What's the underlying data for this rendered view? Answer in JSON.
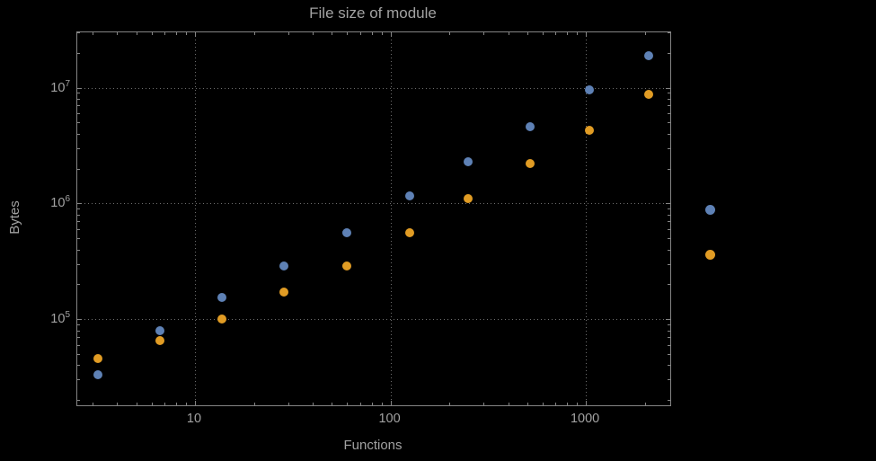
{
  "colors": {
    "background": "#000000",
    "text": "#a2a2a2",
    "frame": "#848484",
    "grid": "#6e6e6e",
    "series_blue": "#5E81B5",
    "series_orange": "#E19C24"
  },
  "chart_data": {
    "type": "scatter",
    "title": "File size of module",
    "xlabel": "Functions",
    "ylabel": "Bytes",
    "x_scale": "log",
    "y_scale": "log",
    "xlim": [
      2.5,
      2700
    ],
    "ylim": [
      18000,
      30000000
    ],
    "grid": "dotted",
    "x_major_ticks": [
      10,
      100,
      1000
    ],
    "x_tick_labels": [
      "10",
      "100",
      "1000"
    ],
    "y_major_ticks": [
      100000,
      1000000,
      10000000
    ],
    "y_tick_labels": [
      "10^5",
      "10^6",
      "10^7"
    ],
    "legend_position": "outside-right",
    "legend": {
      "entries": [
        {
          "label": "",
          "color": "#5E81B5"
        },
        {
          "label": "",
          "color": "#E19C24"
        }
      ]
    },
    "series": [
      {
        "name": "series-blue",
        "color": "#5E81B5",
        "points": [
          [
            3.2,
            33000
          ],
          [
            6.6,
            80000
          ],
          [
            13.8,
            155000
          ],
          [
            28.5,
            290000
          ],
          [
            60,
            560000
          ],
          [
            125,
            1150000
          ],
          [
            250,
            2300000
          ],
          [
            520,
            4600000
          ],
          [
            1040,
            9500000
          ],
          [
            2100,
            19000000
          ]
        ]
      },
      {
        "name": "series-orange",
        "color": "#E19C24",
        "points": [
          [
            3.2,
            46000
          ],
          [
            6.6,
            65000
          ],
          [
            13.8,
            100000
          ],
          [
            28.5,
            170000
          ],
          [
            60,
            290000
          ],
          [
            125,
            560000
          ],
          [
            250,
            1100000
          ],
          [
            520,
            2200000
          ],
          [
            1040,
            4300000
          ],
          [
            2100,
            8800000
          ]
        ]
      }
    ]
  }
}
